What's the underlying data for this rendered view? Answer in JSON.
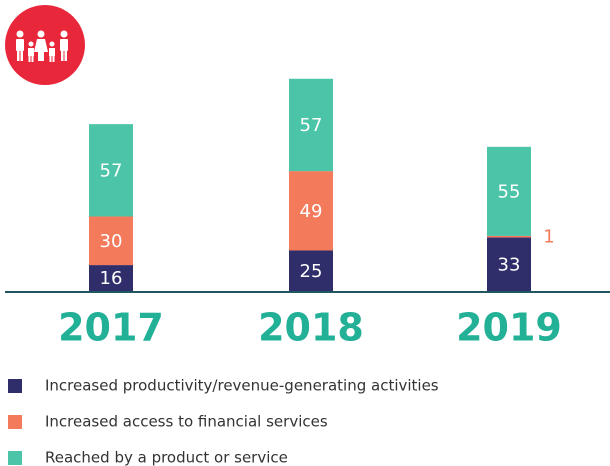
{
  "chart_data": {
    "type": "stacked_bar",
    "categories": [
      "2017",
      "2018",
      "2019"
    ],
    "series": [
      {
        "name": "Increased productivity/revenue-generating activities",
        "color": "#2f2e6b",
        "values": [
          16,
          25,
          33
        ]
      },
      {
        "name": "Increased access to financial services",
        "color": "#f47a5c",
        "values": [
          30,
          49,
          1
        ]
      },
      {
        "name": "Reached by a product or service",
        "color": "#4cc4a7",
        "values": [
          57,
          57,
          55
        ]
      }
    ]
  }
}
